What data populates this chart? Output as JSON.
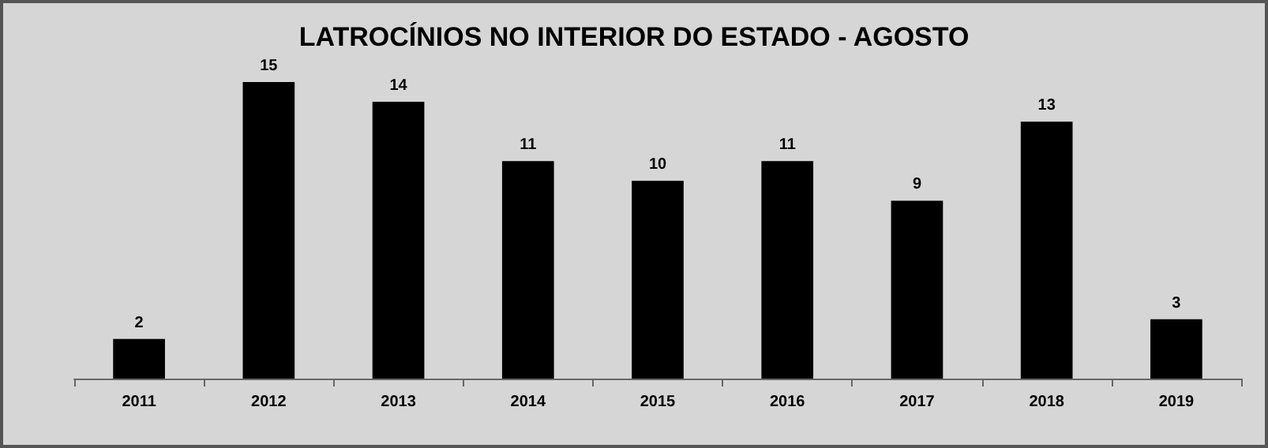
{
  "chart_data": {
    "type": "bar",
    "title": "LATROCÍNIOS NO INTERIOR DO ESTADO - AGOSTO",
    "categories": [
      "2011",
      "2012",
      "2013",
      "2014",
      "2015",
      "2016",
      "2017",
      "2018",
      "2019"
    ],
    "values": [
      2,
      15,
      14,
      11,
      10,
      11,
      9,
      13,
      3
    ],
    "color": "#000000",
    "data_labels": true
  }
}
